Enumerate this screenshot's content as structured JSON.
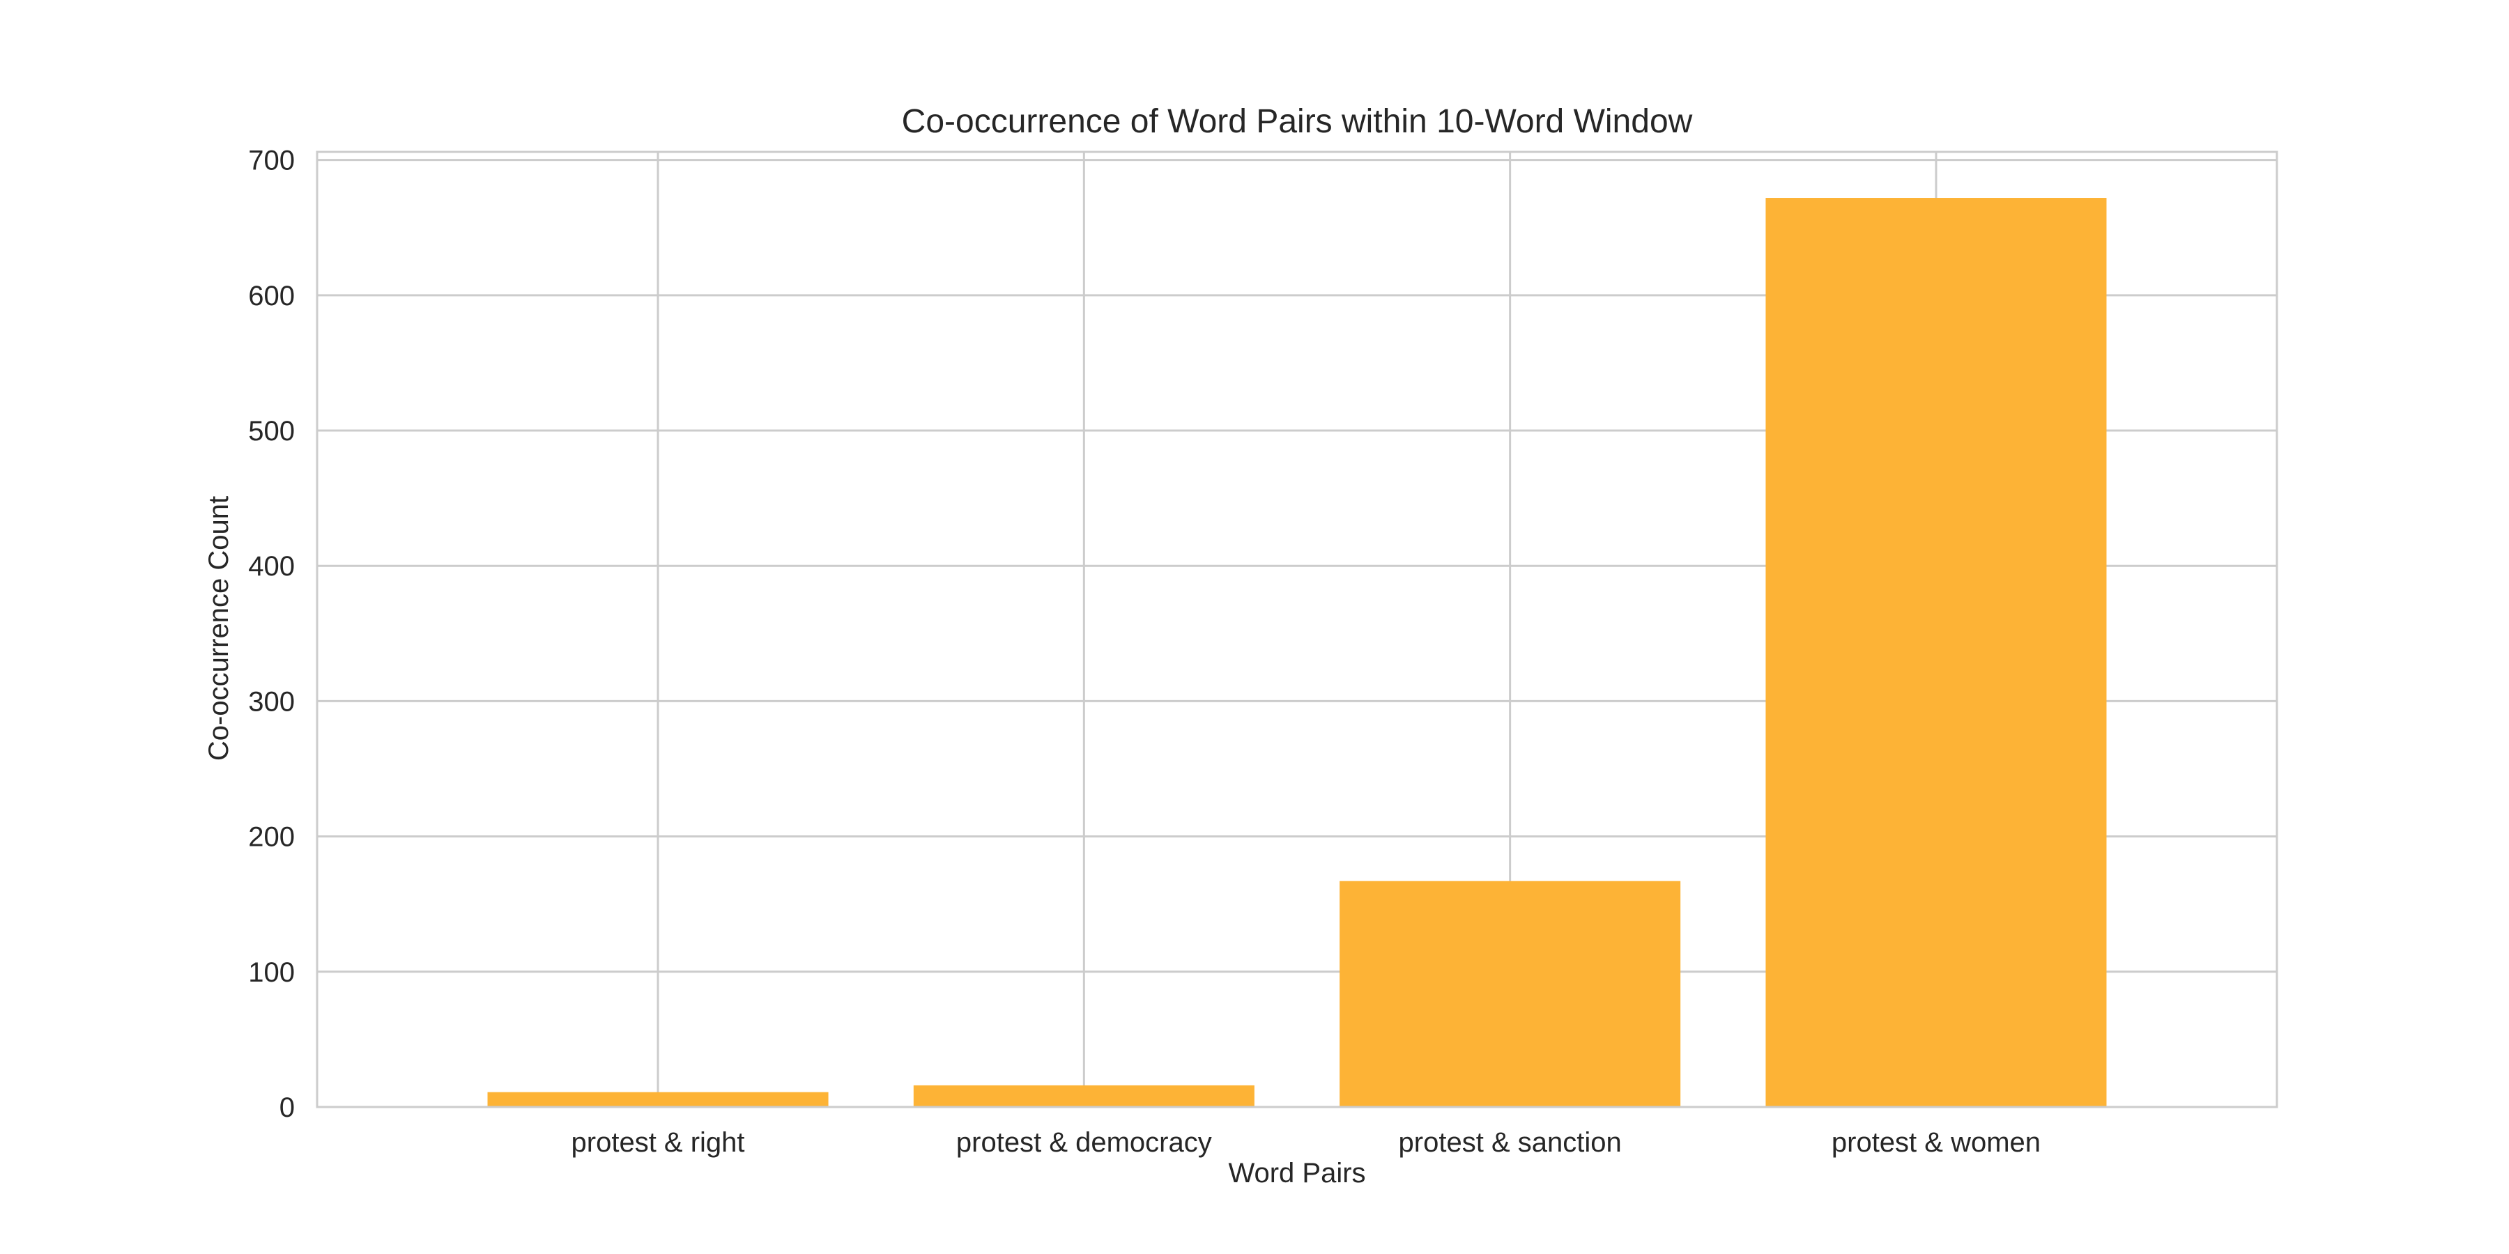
{
  "chart_data": {
    "type": "bar",
    "title": "Co-occurrence of Word Pairs within 10-Word Window",
    "xlabel": "Word Pairs",
    "ylabel": "Co-occurrence Count",
    "categories": [
      "protest & right",
      "protest & democracy",
      "protest & sanction",
      "protest & women"
    ],
    "values": [
      11,
      16,
      167,
      672
    ],
    "ylim": [
      0,
      706
    ],
    "yticks": [
      0,
      100,
      200,
      300,
      400,
      500,
      600,
      700
    ],
    "grid": true,
    "colors": {
      "bar": "#fdb336",
      "grid": "#cccccc",
      "spine": "#cccccc"
    }
  }
}
